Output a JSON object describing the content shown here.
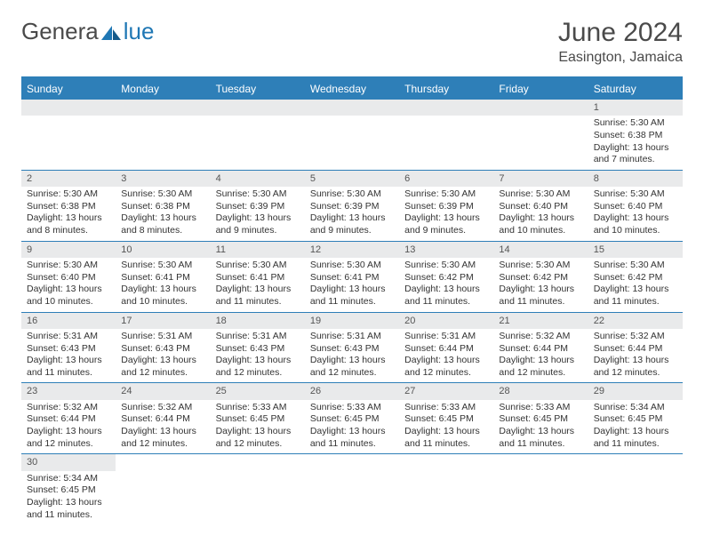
{
  "logo": {
    "text_left": "Genera",
    "text_right": "lue",
    "brand_color": "#1f77b4",
    "gray_color": "#4a4a4a"
  },
  "header": {
    "month_year": "June 2024",
    "location": "Easington, Jamaica"
  },
  "calendar": {
    "header_bg": "#2e7fb8",
    "header_fg": "#ffffff",
    "numbar_bg": "#e9eaeb",
    "divider_color": "#2e7fb8",
    "day_names": [
      "Sunday",
      "Monday",
      "Tuesday",
      "Wednesday",
      "Thursday",
      "Friday",
      "Saturday"
    ],
    "weeks": [
      [
        null,
        null,
        null,
        null,
        null,
        null,
        {
          "n": "1",
          "sunrise": "Sunrise: 5:30 AM",
          "sunset": "Sunset: 6:38 PM",
          "daylight1": "Daylight: 13 hours",
          "daylight2": "and 7 minutes."
        }
      ],
      [
        {
          "n": "2",
          "sunrise": "Sunrise: 5:30 AM",
          "sunset": "Sunset: 6:38 PM",
          "daylight1": "Daylight: 13 hours",
          "daylight2": "and 8 minutes."
        },
        {
          "n": "3",
          "sunrise": "Sunrise: 5:30 AM",
          "sunset": "Sunset: 6:38 PM",
          "daylight1": "Daylight: 13 hours",
          "daylight2": "and 8 minutes."
        },
        {
          "n": "4",
          "sunrise": "Sunrise: 5:30 AM",
          "sunset": "Sunset: 6:39 PM",
          "daylight1": "Daylight: 13 hours",
          "daylight2": "and 9 minutes."
        },
        {
          "n": "5",
          "sunrise": "Sunrise: 5:30 AM",
          "sunset": "Sunset: 6:39 PM",
          "daylight1": "Daylight: 13 hours",
          "daylight2": "and 9 minutes."
        },
        {
          "n": "6",
          "sunrise": "Sunrise: 5:30 AM",
          "sunset": "Sunset: 6:39 PM",
          "daylight1": "Daylight: 13 hours",
          "daylight2": "and 9 minutes."
        },
        {
          "n": "7",
          "sunrise": "Sunrise: 5:30 AM",
          "sunset": "Sunset: 6:40 PM",
          "daylight1": "Daylight: 13 hours",
          "daylight2": "and 10 minutes."
        },
        {
          "n": "8",
          "sunrise": "Sunrise: 5:30 AM",
          "sunset": "Sunset: 6:40 PM",
          "daylight1": "Daylight: 13 hours",
          "daylight2": "and 10 minutes."
        }
      ],
      [
        {
          "n": "9",
          "sunrise": "Sunrise: 5:30 AM",
          "sunset": "Sunset: 6:40 PM",
          "daylight1": "Daylight: 13 hours",
          "daylight2": "and 10 minutes."
        },
        {
          "n": "10",
          "sunrise": "Sunrise: 5:30 AM",
          "sunset": "Sunset: 6:41 PM",
          "daylight1": "Daylight: 13 hours",
          "daylight2": "and 10 minutes."
        },
        {
          "n": "11",
          "sunrise": "Sunrise: 5:30 AM",
          "sunset": "Sunset: 6:41 PM",
          "daylight1": "Daylight: 13 hours",
          "daylight2": "and 11 minutes."
        },
        {
          "n": "12",
          "sunrise": "Sunrise: 5:30 AM",
          "sunset": "Sunset: 6:41 PM",
          "daylight1": "Daylight: 13 hours",
          "daylight2": "and 11 minutes."
        },
        {
          "n": "13",
          "sunrise": "Sunrise: 5:30 AM",
          "sunset": "Sunset: 6:42 PM",
          "daylight1": "Daylight: 13 hours",
          "daylight2": "and 11 minutes."
        },
        {
          "n": "14",
          "sunrise": "Sunrise: 5:30 AM",
          "sunset": "Sunset: 6:42 PM",
          "daylight1": "Daylight: 13 hours",
          "daylight2": "and 11 minutes."
        },
        {
          "n": "15",
          "sunrise": "Sunrise: 5:30 AM",
          "sunset": "Sunset: 6:42 PM",
          "daylight1": "Daylight: 13 hours",
          "daylight2": "and 11 minutes."
        }
      ],
      [
        {
          "n": "16",
          "sunrise": "Sunrise: 5:31 AM",
          "sunset": "Sunset: 6:43 PM",
          "daylight1": "Daylight: 13 hours",
          "daylight2": "and 11 minutes."
        },
        {
          "n": "17",
          "sunrise": "Sunrise: 5:31 AM",
          "sunset": "Sunset: 6:43 PM",
          "daylight1": "Daylight: 13 hours",
          "daylight2": "and 12 minutes."
        },
        {
          "n": "18",
          "sunrise": "Sunrise: 5:31 AM",
          "sunset": "Sunset: 6:43 PM",
          "daylight1": "Daylight: 13 hours",
          "daylight2": "and 12 minutes."
        },
        {
          "n": "19",
          "sunrise": "Sunrise: 5:31 AM",
          "sunset": "Sunset: 6:43 PM",
          "daylight1": "Daylight: 13 hours",
          "daylight2": "and 12 minutes."
        },
        {
          "n": "20",
          "sunrise": "Sunrise: 5:31 AM",
          "sunset": "Sunset: 6:44 PM",
          "daylight1": "Daylight: 13 hours",
          "daylight2": "and 12 minutes."
        },
        {
          "n": "21",
          "sunrise": "Sunrise: 5:32 AM",
          "sunset": "Sunset: 6:44 PM",
          "daylight1": "Daylight: 13 hours",
          "daylight2": "and 12 minutes."
        },
        {
          "n": "22",
          "sunrise": "Sunrise: 5:32 AM",
          "sunset": "Sunset: 6:44 PM",
          "daylight1": "Daylight: 13 hours",
          "daylight2": "and 12 minutes."
        }
      ],
      [
        {
          "n": "23",
          "sunrise": "Sunrise: 5:32 AM",
          "sunset": "Sunset: 6:44 PM",
          "daylight1": "Daylight: 13 hours",
          "daylight2": "and 12 minutes."
        },
        {
          "n": "24",
          "sunrise": "Sunrise: 5:32 AM",
          "sunset": "Sunset: 6:44 PM",
          "daylight1": "Daylight: 13 hours",
          "daylight2": "and 12 minutes."
        },
        {
          "n": "25",
          "sunrise": "Sunrise: 5:33 AM",
          "sunset": "Sunset: 6:45 PM",
          "daylight1": "Daylight: 13 hours",
          "daylight2": "and 12 minutes."
        },
        {
          "n": "26",
          "sunrise": "Sunrise: 5:33 AM",
          "sunset": "Sunset: 6:45 PM",
          "daylight1": "Daylight: 13 hours",
          "daylight2": "and 11 minutes."
        },
        {
          "n": "27",
          "sunrise": "Sunrise: 5:33 AM",
          "sunset": "Sunset: 6:45 PM",
          "daylight1": "Daylight: 13 hours",
          "daylight2": "and 11 minutes."
        },
        {
          "n": "28",
          "sunrise": "Sunrise: 5:33 AM",
          "sunset": "Sunset: 6:45 PM",
          "daylight1": "Daylight: 13 hours",
          "daylight2": "and 11 minutes."
        },
        {
          "n": "29",
          "sunrise": "Sunrise: 5:34 AM",
          "sunset": "Sunset: 6:45 PM",
          "daylight1": "Daylight: 13 hours",
          "daylight2": "and 11 minutes."
        }
      ],
      [
        {
          "n": "30",
          "sunrise": "Sunrise: 5:34 AM",
          "sunset": "Sunset: 6:45 PM",
          "daylight1": "Daylight: 13 hours",
          "daylight2": "and 11 minutes."
        },
        null,
        null,
        null,
        null,
        null,
        null
      ]
    ]
  }
}
